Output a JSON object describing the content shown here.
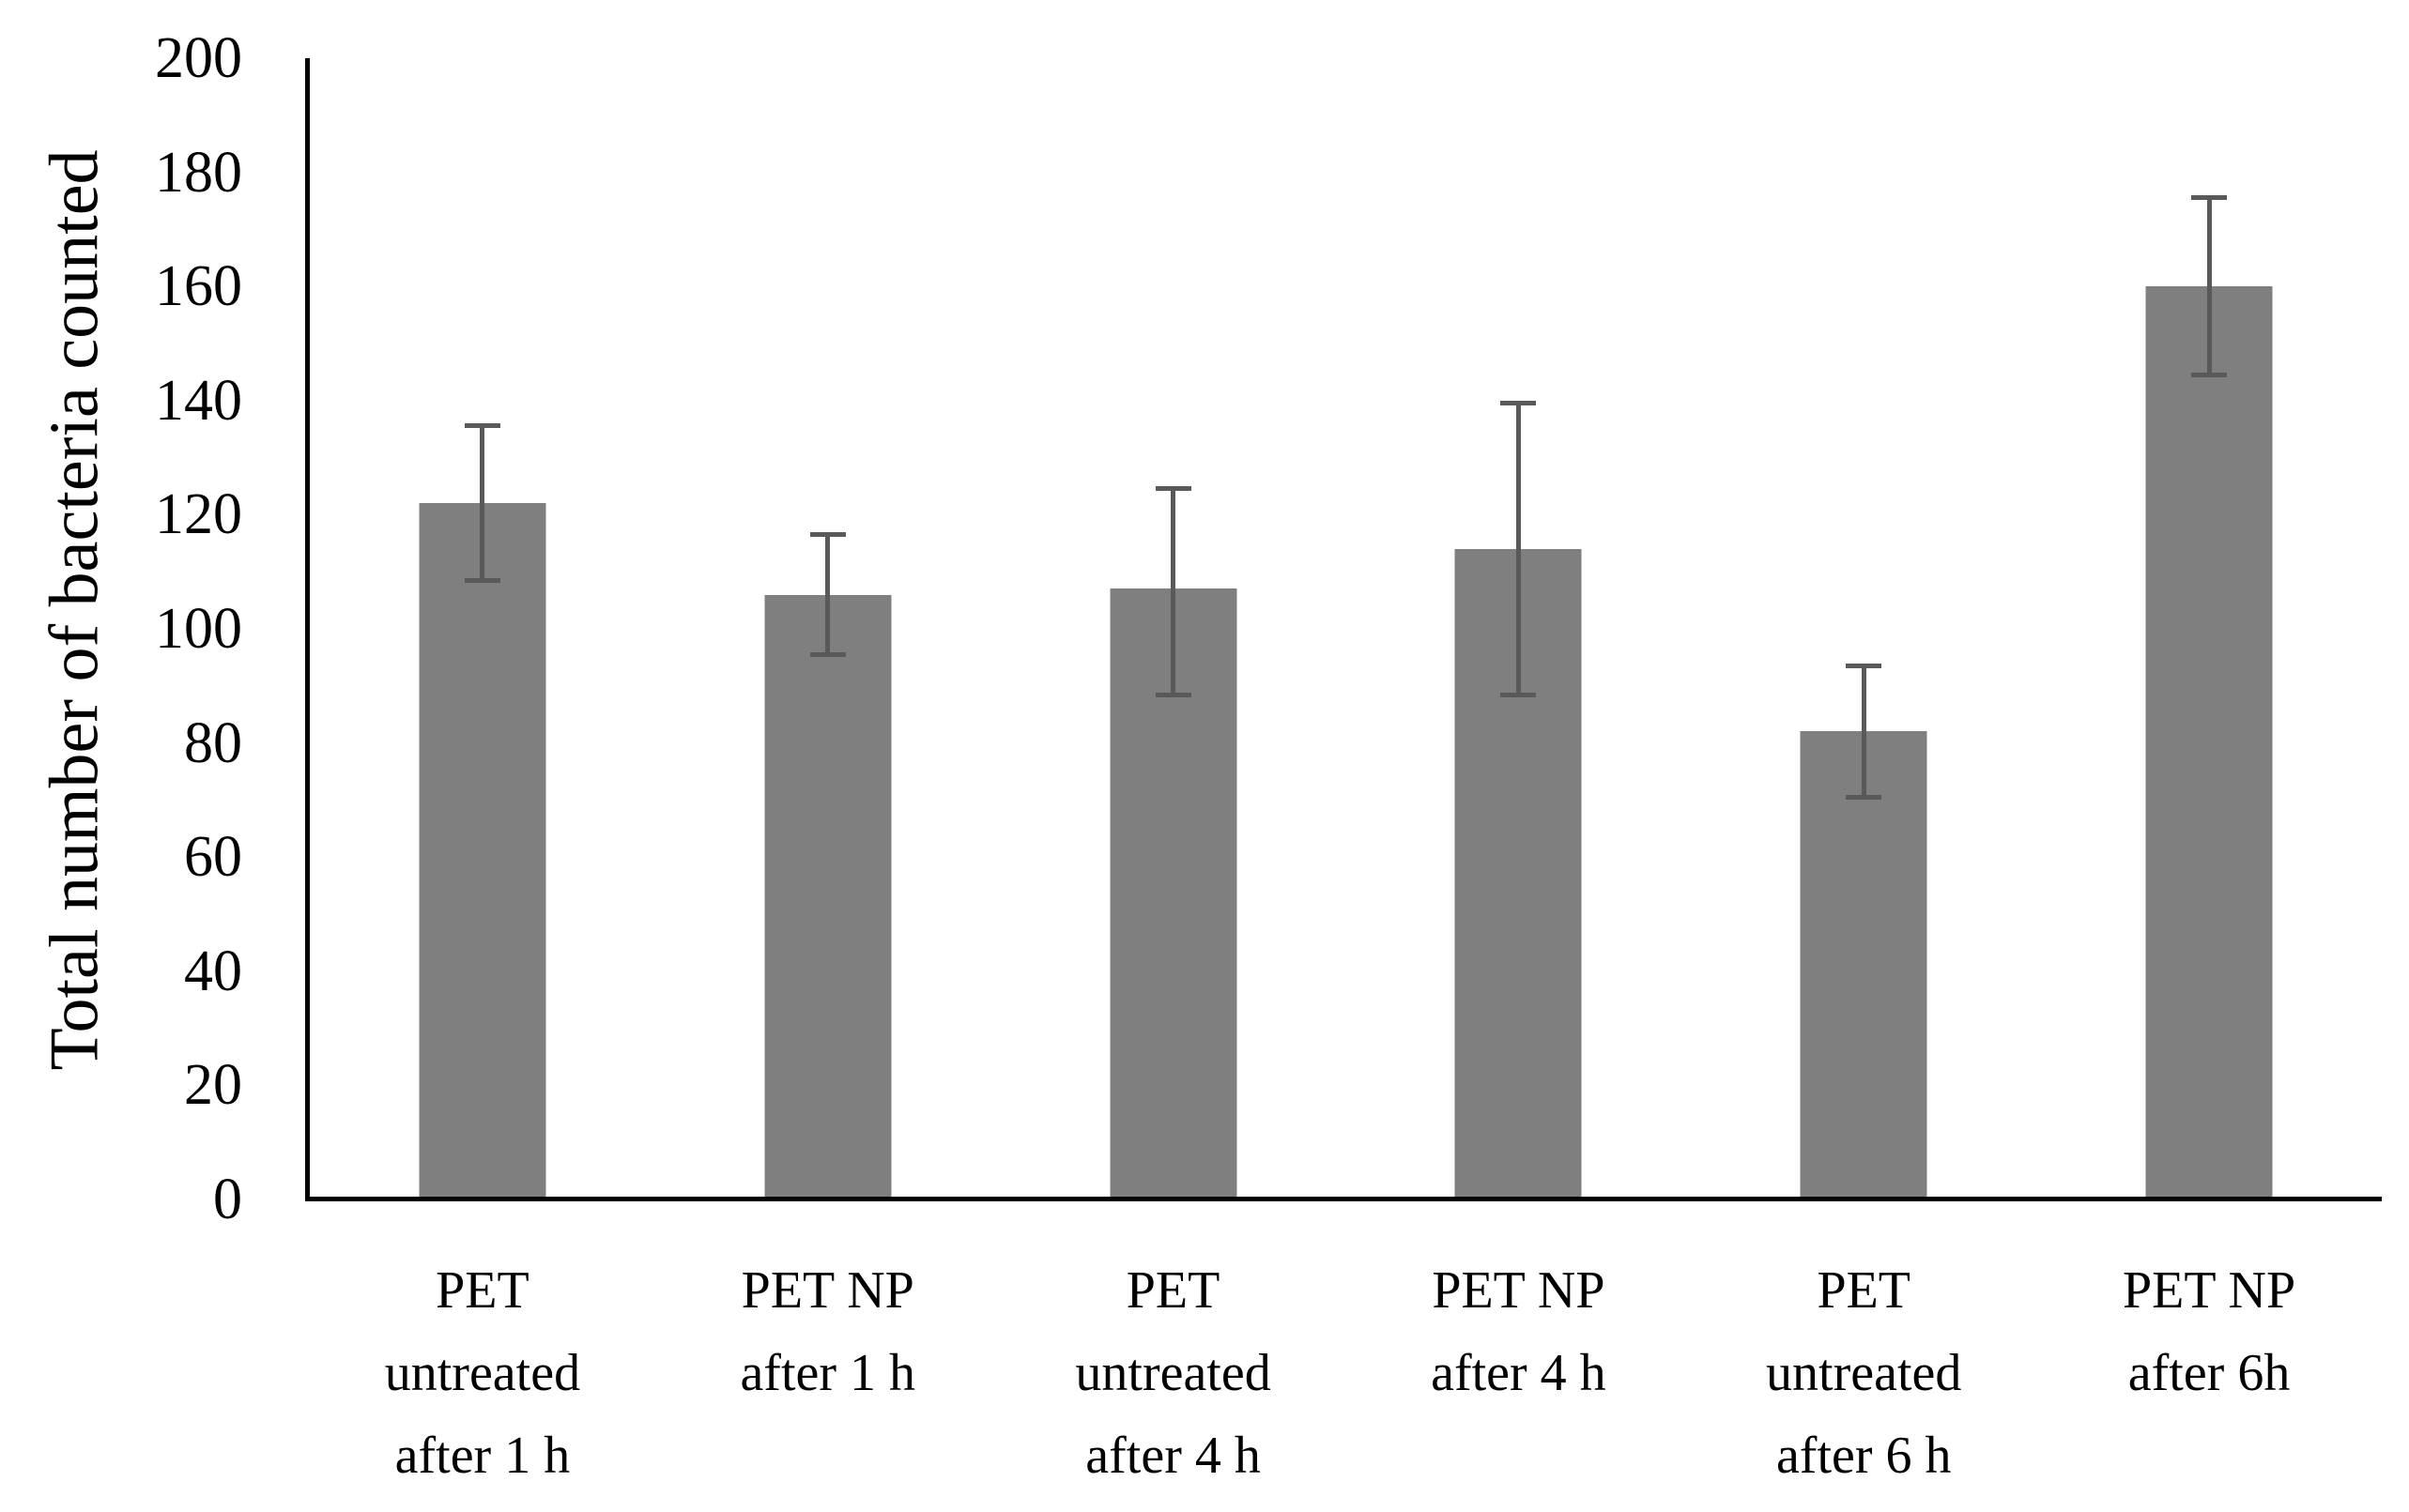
{
  "chart_data": {
    "type": "bar",
    "title": "",
    "ylabel": "Total number of bacteria counted",
    "xlabel": "",
    "ylim": [
      0,
      200
    ],
    "ytick_step": 20,
    "yticks": [
      0,
      20,
      40,
      60,
      80,
      100,
      120,
      140,
      160,
      180,
      200
    ],
    "grid": false,
    "legend": false,
    "categories": [
      "PET untreated after 1 h",
      "PET NP after 1 h",
      "PET untreated after 4 h",
      "PET NP after 4 h",
      "PET untreated after 6 h",
      "PET NP after 6h"
    ],
    "category_lines": [
      [
        "PET",
        "untreated",
        "after 1 h"
      ],
      [
        "PET NP",
        "after 1 h"
      ],
      [
        "PET",
        "untreated",
        "after 4 h"
      ],
      [
        "PET NP",
        "after 4 h"
      ],
      [
        "PET",
        "untreated",
        "after 6 h"
      ],
      [
        "PET NP",
        "after 6h"
      ]
    ],
    "values": [
      122,
      106,
      107,
      114,
      82,
      160
    ],
    "error_plus": [
      14,
      11,
      18,
      26,
      12,
      16
    ],
    "error_minus": [
      14,
      11,
      19,
      26,
      12,
      16
    ],
    "colors": {
      "bar_fill": "#7f7f7f",
      "error_bar": "#595959",
      "axis_line": "#000000",
      "text": "#000000"
    }
  }
}
